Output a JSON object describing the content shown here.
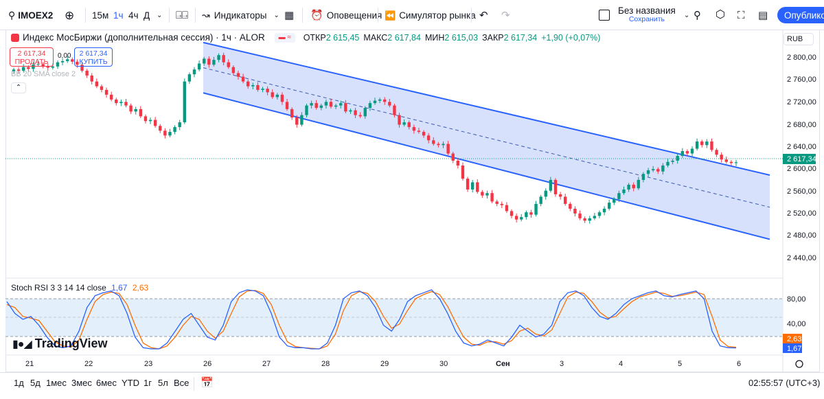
{
  "toolbar": {
    "symbol": "IMOEX2",
    "intervals": [
      "15м",
      "1ч",
      "4ч",
      "Д"
    ],
    "active_interval": "1ч",
    "indicators_label": "Индикаторы",
    "alerts_label": "Оповещения",
    "simulator_label": "Симулятор рынка",
    "layout_title": "Без названия",
    "layout_subtitle": "Сохранить",
    "publish_label": "Опубликовать"
  },
  "legend": {
    "title": "Индекс МосБиржи (дополнительная сессия) · 1ч · ALOR",
    "open_label": "ОТКР",
    "open": "2 615,45",
    "high_label": "МАКС",
    "high": "2 617,84",
    "low_label": "МИН",
    "low": "2 615,03",
    "close_label": "ЗАКР",
    "close": "2 617,34",
    "change": "+1,90 (+0,07%)",
    "sell_price": "2 617,34",
    "sell_label": "ПРОДАТЬ",
    "spread": "0,00",
    "buy_price": "2 617,34",
    "buy_label": "КУПИТЬ",
    "indicator_ghost": "BB 20 SMA close 2"
  },
  "currency": "RUB",
  "price_axis": {
    "ticks": [
      "2 800,00",
      "2 760,00",
      "2 720,00",
      "2 680,00",
      "2 640,00",
      "2 600,00",
      "2 560,00",
      "2 520,00",
      "2 480,00",
      "2 440,00"
    ],
    "last_price": "2 617,34"
  },
  "stoch": {
    "label": "Stoch RSI",
    "params": "3 3 14 14 close",
    "k": "1,67",
    "d": "2,63",
    "ticks": [
      "80,00",
      "40,00"
    ]
  },
  "time_axis": [
    "21",
    "22",
    "23",
    "26",
    "27",
    "28",
    "29",
    "30",
    "Сен",
    "3",
    "4",
    "5",
    "6"
  ],
  "ranges": [
    "1д",
    "5д",
    "1мес",
    "3мес",
    "6мес",
    "YTD",
    "1г",
    "5л",
    "Все"
  ],
  "clock": "02:55:57 (UTC+3)",
  "watermark": "TradingView",
  "colors": {
    "up": "#089981",
    "down": "#f23645",
    "channel_line": "#2962ff",
    "channel_fill": "#d1dcfc",
    "stoch_k": "#2962ff",
    "stoch_d": "#ff6d00",
    "accent": "#2962ff"
  },
  "chart_data": {
    "type": "candlestick",
    "title": "Индекс МосБиржи (дополнительная сессия) · 1ч · ALOR",
    "y_range": [
      2430,
      2810
    ],
    "days": [
      "21",
      "22",
      "23",
      "26",
      "27",
      "28",
      "29",
      "30",
      "Сен",
      "3",
      "4",
      "5",
      "6"
    ],
    "closes": [
      2772,
      2770,
      2776,
      2773,
      2780,
      2781,
      2778,
      2775,
      2777,
      2784,
      2786,
      2789,
      2785,
      2780,
      2770,
      2762,
      2752,
      2744,
      2738,
      2730,
      2722,
      2716,
      2718,
      2712,
      2702,
      2706,
      2694,
      2686,
      2688,
      2678,
      2670,
      2662,
      2668,
      2676,
      2684,
      2752,
      2764,
      2772,
      2782,
      2790,
      2780,
      2788,
      2796,
      2784,
      2776,
      2766,
      2760,
      2752,
      2744,
      2746,
      2738,
      2740,
      2734,
      2726,
      2730,
      2718,
      2706,
      2692,
      2680,
      2696,
      2712,
      2716,
      2708,
      2712,
      2718,
      2710,
      2712,
      2716,
      2702,
      2704,
      2696,
      2694,
      2708,
      2716,
      2720,
      2722,
      2718,
      2712,
      2696,
      2680,
      2684,
      2676,
      2670,
      2668,
      2662,
      2654,
      2648,
      2646,
      2648,
      2632,
      2620,
      2612,
      2590,
      2572,
      2584,
      2568,
      2562,
      2566,
      2552,
      2548,
      2546,
      2536,
      2528,
      2522,
      2526,
      2534,
      2530,
      2548,
      2560,
      2570,
      2588,
      2564,
      2560,
      2548,
      2540,
      2532,
      2524,
      2520,
      2524,
      2528,
      2534,
      2540,
      2550,
      2556,
      2566,
      2572,
      2580,
      2574,
      2588,
      2598,
      2604,
      2606,
      2602,
      2612,
      2618,
      2620,
      2628,
      2636,
      2632,
      2640,
      2652,
      2646,
      2652,
      2638,
      2630,
      2622,
      2618,
      2616,
      2617.34
    ],
    "channel": {
      "upper_start": 2817,
      "upper_end": 2596,
      "lower_start": 2733,
      "lower_end": 2489
    },
    "stoch_rsi": {
      "k": [
        80,
        60,
        50,
        55,
        40,
        20,
        5,
        2,
        5,
        30,
        70,
        90,
        95,
        98,
        90,
        60,
        20,
        2,
        0,
        0,
        10,
        30,
        50,
        60,
        40,
        20,
        15,
        40,
        80,
        95,
        100,
        98,
        90,
        60,
        20,
        5,
        2,
        2,
        0,
        0,
        10,
        40,
        85,
        95,
        98,
        90,
        70,
        40,
        30,
        50,
        80,
        90,
        95,
        100,
        85,
        60,
        30,
        10,
        5,
        8,
        15,
        10,
        5,
        20,
        40,
        30,
        20,
        25,
        40,
        80,
        95,
        98,
        90,
        70,
        55,
        50,
        60,
        75,
        85,
        90,
        95,
        98,
        90,
        88,
        92,
        95,
        98,
        85,
        30,
        5,
        2,
        1.67
      ],
      "d": [
        75,
        70,
        55,
        52,
        48,
        30,
        12,
        5,
        3,
        15,
        50,
        80,
        92,
        96,
        94,
        75,
        40,
        10,
        2,
        0,
        5,
        20,
        40,
        55,
        50,
        30,
        18,
        30,
        60,
        88,
        98,
        99,
        94,
        75,
        40,
        12,
        4,
        2,
        1,
        0,
        5,
        25,
        65,
        90,
        97,
        94,
        80,
        55,
        35,
        42,
        65,
        85,
        92,
        97,
        92,
        72,
        45,
        20,
        8,
        6,
        12,
        12,
        8,
        14,
        30,
        35,
        25,
        22,
        32,
        60,
        88,
        96,
        94,
        80,
        62,
        52,
        55,
        68,
        80,
        88,
        92,
        96,
        94,
        89,
        90,
        93,
        96,
        92,
        55,
        15,
        4,
        2.63
      ]
    }
  }
}
